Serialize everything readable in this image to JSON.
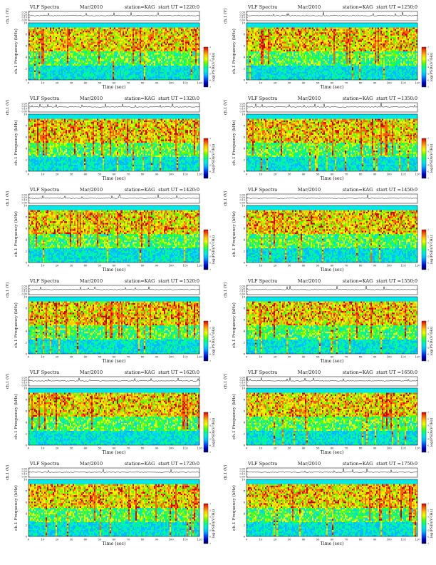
{
  "colors": {
    "background": "#00d8e8",
    "spectral_ramp": [
      "#000060",
      "#0000c8",
      "#0050ff",
      "#00b8ff",
      "#00e8e8",
      "#00ff80",
      "#60ff00",
      "#e8ff00",
      "#ffc800",
      "#ff6000",
      "#d00000"
    ]
  },
  "chart_data": [
    {
      "type": "heatmap",
      "title": "VLF Spectra",
      "date": "Mar/2010",
      "station": "station=KAG",
      "start": "start  UT =1220:0",
      "ch_label": "ch.1 (V)",
      "ylabel": "ch.1  Frequency  (kHz)",
      "xlabel": "Time  (sec)",
      "colorbar_label": "log(PSD)(V²/Hz)",
      "xlim": [
        0,
        120
      ],
      "ylim": [
        0,
        10
      ],
      "trace_ylim": [
        0,
        0.3
      ],
      "xticks": [
        "0",
        "10",
        "20",
        "30",
        "40",
        "50",
        "60",
        "70",
        "80",
        "90",
        "100",
        "110",
        "120"
      ],
      "yticks": [
        "0",
        "2",
        "4",
        "6",
        "8",
        "10"
      ],
      "trace_ticks": [
        "0.30",
        "0.20",
        "0.10",
        "0.00"
      ],
      "colorbar_ticks": [
        "-1",
        "-2",
        "-3",
        "-4",
        "-5",
        "-6",
        "-7"
      ]
    },
    {
      "type": "heatmap",
      "title": "VLF Spectra",
      "date": "Mar/2010",
      "station": "station=KAG",
      "start": "start  UT =1250:0",
      "ch_label": "ch.1 (V)",
      "ylabel": "ch.1  Frequency  (kHz)",
      "xlabel": "Time  (sec)",
      "colorbar_label": "log(PSD)(V²/Hz)",
      "xlim": [
        0,
        120
      ],
      "ylim": [
        0,
        10
      ],
      "trace_ylim": [
        0,
        0.3
      ],
      "xticks": [
        "0",
        "10",
        "20",
        "30",
        "40",
        "50",
        "60",
        "70",
        "80",
        "90",
        "100",
        "110",
        "120"
      ],
      "yticks": [
        "0",
        "2",
        "4",
        "6",
        "8",
        "10"
      ],
      "trace_ticks": [
        "0.30",
        "0.20",
        "0.10",
        "0.00"
      ],
      "colorbar_ticks": [
        "-1",
        "-2",
        "-3",
        "-4",
        "-5",
        "-6",
        "-7"
      ]
    },
    {
      "type": "heatmap",
      "title": "VLF Spectra",
      "date": "Mar/2010",
      "station": "station=KAG",
      "start": "start  UT =1320:0",
      "ch_label": "ch.1 (V)",
      "ylabel": "ch.1  Frequency  (kHz)",
      "xlabel": "Time  (sec)",
      "colorbar_label": "log(PSD)(V²/Hz)",
      "xlim": [
        0,
        120
      ],
      "ylim": [
        0,
        10
      ],
      "trace_ylim": [
        0,
        0.3
      ],
      "xticks": [
        "0",
        "10",
        "20",
        "30",
        "40",
        "50",
        "60",
        "70",
        "80",
        "90",
        "100",
        "110",
        "120"
      ],
      "yticks": [
        "0",
        "2",
        "4",
        "6",
        "8",
        "10"
      ],
      "trace_ticks": [
        "0.30",
        "0.20",
        "0.10",
        "0.00"
      ],
      "colorbar_ticks": [
        "-1",
        "-2",
        "-3",
        "-4",
        "-5",
        "-6",
        "-7"
      ]
    },
    {
      "type": "heatmap",
      "title": "VLF Spectra",
      "date": "Mar/2010",
      "station": "station=KAG",
      "start": "start  UT =1350:0",
      "ch_label": "ch.1 (V)",
      "ylabel": "ch.1  Frequency  (kHz)",
      "xlabel": "Time  (sec)",
      "colorbar_label": "log(PSD)(V²/Hz)",
      "xlim": [
        0,
        120
      ],
      "ylim": [
        0,
        10
      ],
      "trace_ylim": [
        0,
        0.3
      ],
      "xticks": [
        "0",
        "10",
        "20",
        "30",
        "40",
        "50",
        "60",
        "70",
        "80",
        "90",
        "100",
        "110",
        "120"
      ],
      "yticks": [
        "0",
        "2",
        "4",
        "6",
        "8",
        "10"
      ],
      "trace_ticks": [
        "0.30",
        "0.20",
        "0.10",
        "0.00"
      ],
      "colorbar_ticks": [
        "-1",
        "-2",
        "-3",
        "-4",
        "-5",
        "-6",
        "-7"
      ]
    },
    {
      "type": "heatmap",
      "title": "VLF Spectra",
      "date": "Mar/2010",
      "station": "station=KAG",
      "start": "start  UT =1420:0",
      "ch_label": "ch.1 (V)",
      "ylabel": "ch.1  Frequency  (kHz)",
      "xlabel": "Time  (sec)",
      "colorbar_label": "log(PSD)(V²/Hz)",
      "xlim": [
        0,
        120
      ],
      "ylim": [
        0,
        10
      ],
      "trace_ylim": [
        0,
        0.3
      ],
      "xticks": [
        "0",
        "10",
        "20",
        "30",
        "40",
        "50",
        "60",
        "70",
        "80",
        "90",
        "100",
        "110",
        "120"
      ],
      "yticks": [
        "0",
        "2",
        "4",
        "6",
        "8",
        "10"
      ],
      "trace_ticks": [
        "0.30",
        "0.20",
        "0.10",
        "0.00"
      ],
      "colorbar_ticks": [
        "-1",
        "-2",
        "-3",
        "-4",
        "-5",
        "-6",
        "-7"
      ]
    },
    {
      "type": "heatmap",
      "title": "VLF Spectra",
      "date": "Mar/2010",
      "station": "station=KAG",
      "start": "start  UT =1450:0",
      "ch_label": "ch.1 (V)",
      "ylabel": "ch.1  Frequency  (kHz)",
      "xlabel": "Time  (sec)",
      "colorbar_label": "log(PSD)(V²/Hz)",
      "xlim": [
        0,
        120
      ],
      "ylim": [
        0,
        10
      ],
      "trace_ylim": [
        0,
        0.3
      ],
      "xticks": [
        "0",
        "10",
        "20",
        "30",
        "40",
        "50",
        "60",
        "70",
        "80",
        "90",
        "100",
        "110",
        "120"
      ],
      "yticks": [
        "0",
        "2",
        "4",
        "6",
        "8",
        "10"
      ],
      "trace_ticks": [
        "0.30",
        "0.20",
        "0.10",
        "0.00"
      ],
      "colorbar_ticks": [
        "-1",
        "-2",
        "-3",
        "-4",
        "-5",
        "-6",
        "-7"
      ]
    },
    {
      "type": "heatmap",
      "title": "VLF Spectra",
      "date": "Mar/2010",
      "station": "station=KAG",
      "start": "start  UT =1520:0",
      "ch_label": "ch.1 (V)",
      "ylabel": "ch.1  Frequency  (kHz)",
      "xlabel": "Time  (sec)",
      "colorbar_label": "log(PSD)(V²/Hz)",
      "xlim": [
        0,
        120
      ],
      "ylim": [
        0,
        10
      ],
      "trace_ylim": [
        0,
        0.3
      ],
      "xticks": [
        "0",
        "10",
        "20",
        "30",
        "40",
        "50",
        "60",
        "70",
        "80",
        "90",
        "100",
        "110",
        "120"
      ],
      "yticks": [
        "0",
        "2",
        "4",
        "6",
        "8",
        "10"
      ],
      "trace_ticks": [
        "0.30",
        "0.20",
        "0.10",
        "0.00"
      ],
      "colorbar_ticks": [
        "-1",
        "-2",
        "-3",
        "-4",
        "-5",
        "-6",
        "-7"
      ]
    },
    {
      "type": "heatmap",
      "title": "VLF Spectra",
      "date": "Mar/2010",
      "station": "station=KAG",
      "start": "start  UT =1550:0",
      "ch_label": "ch.1 (V)",
      "ylabel": "ch.1  Frequency  (kHz)",
      "xlabel": "Time  (sec)",
      "colorbar_label": "log(PSD)(V²/Hz)",
      "xlim": [
        0,
        120
      ],
      "ylim": [
        0,
        10
      ],
      "trace_ylim": [
        0,
        0.3
      ],
      "xticks": [
        "0",
        "10",
        "20",
        "30",
        "40",
        "50",
        "60",
        "70",
        "80",
        "90",
        "100",
        "110",
        "120"
      ],
      "yticks": [
        "0",
        "2",
        "4",
        "6",
        "8",
        "10"
      ],
      "trace_ticks": [
        "0.30",
        "0.20",
        "0.10",
        "0.00"
      ],
      "colorbar_ticks": [
        "-1",
        "-2",
        "-3",
        "-4",
        "-5",
        "-6",
        "-7"
      ]
    },
    {
      "type": "heatmap",
      "title": "VLF Spectra",
      "date": "Mar/2010",
      "station": "station=KAG",
      "start": "start  UT =1620:0",
      "ch_label": "ch.1 (V)",
      "ylabel": "ch.1  Frequency  (kHz)",
      "xlabel": "Time  (sec)",
      "colorbar_label": "log(PSD)(V²/Hz)",
      "xlim": [
        0,
        120
      ],
      "ylim": [
        0,
        10
      ],
      "trace_ylim": [
        0,
        0.3
      ],
      "xticks": [
        "0",
        "10",
        "20",
        "30",
        "40",
        "50",
        "60",
        "70",
        "80",
        "90",
        "100",
        "110",
        "120"
      ],
      "yticks": [
        "0",
        "2",
        "4",
        "6",
        "8",
        "10"
      ],
      "trace_ticks": [
        "0.30",
        "0.20",
        "0.10",
        "0.00"
      ],
      "colorbar_ticks": [
        "-1",
        "-2",
        "-3",
        "-4",
        "-5",
        "-6",
        "-7"
      ]
    },
    {
      "type": "heatmap",
      "title": "VLF Spectra",
      "date": "Mar/2010",
      "station": "station=KAG",
      "start": "start  UT =1650:0",
      "ch_label": "ch.1 (V)",
      "ylabel": "ch.1  Frequency  (kHz)",
      "xlabel": "Time  (sec)",
      "colorbar_label": "log(PSD)(V²/Hz)",
      "xlim": [
        0,
        120
      ],
      "ylim": [
        0,
        10
      ],
      "trace_ylim": [
        0,
        0.3
      ],
      "xticks": [
        "0",
        "10",
        "20",
        "30",
        "40",
        "50",
        "60",
        "70",
        "80",
        "90",
        "100",
        "110",
        "120"
      ],
      "yticks": [
        "0",
        "2",
        "4",
        "6",
        "8",
        "10"
      ],
      "trace_ticks": [
        "0.30",
        "0.20",
        "0.10",
        "0.00"
      ],
      "colorbar_ticks": [
        "-1",
        "-2",
        "-3",
        "-4",
        "-5",
        "-6",
        "-7"
      ]
    },
    {
      "type": "heatmap",
      "title": "VLF Spectra",
      "date": "Mar/2010",
      "station": "station=KAG",
      "start": "start  UT =1720:0",
      "ch_label": "ch.1 (V)",
      "ylabel": "ch.1  Frequency  (kHz)",
      "xlabel": "Time  (sec)",
      "colorbar_label": "log(PSD)(V²/Hz)",
      "xlim": [
        0,
        120
      ],
      "ylim": [
        0,
        10
      ],
      "trace_ylim": [
        0,
        0.3
      ],
      "xticks": [
        "0",
        "10",
        "20",
        "30",
        "40",
        "50",
        "60",
        "70",
        "80",
        "90",
        "100",
        "110",
        "120"
      ],
      "yticks": [
        "0",
        "2",
        "4",
        "6",
        "8",
        "10"
      ],
      "trace_ticks": [
        "0.30",
        "0.20",
        "0.10",
        "0.00"
      ],
      "colorbar_ticks": [
        "-1",
        "-2",
        "-3",
        "-4",
        "-5",
        "-6",
        "-7"
      ]
    },
    {
      "type": "heatmap",
      "title": "VLF Spectra",
      "date": "Mar/2010",
      "station": "station=KAG",
      "start": "start  UT =1750:0",
      "ch_label": "ch.1 (V)",
      "ylabel": "ch.1  Frequency  (kHz)",
      "xlabel": "Time  (sec)",
      "colorbar_label": "log(PSD)(V²/Hz)",
      "xlim": [
        0,
        120
      ],
      "ylim": [
        0,
        10
      ],
      "trace_ylim": [
        0,
        0.3
      ],
      "xticks": [
        "0",
        "10",
        "20",
        "30",
        "40",
        "50",
        "60",
        "70",
        "80",
        "90",
        "100",
        "110",
        "120"
      ],
      "yticks": [
        "0",
        "2",
        "4",
        "6",
        "8",
        "10"
      ],
      "trace_ticks": [
        "0.30",
        "0.20",
        "0.10",
        "0.00"
      ],
      "colorbar_ticks": [
        "-1",
        "-2",
        "-3",
        "-4",
        "-5",
        "-6",
        "-7"
      ]
    }
  ]
}
